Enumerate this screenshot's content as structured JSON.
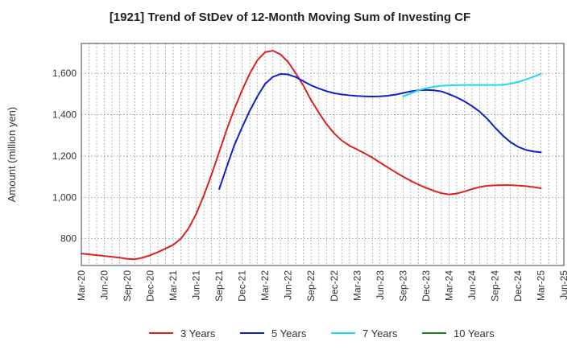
{
  "chart_data": {
    "type": "line",
    "title": "[1921]  Trend of StDev of 12-Month Moving Sum of Investing CF",
    "xlabel": "",
    "ylabel": "Amount (million yen)",
    "x_tick_labels": [
      "Mar-20",
      "Jun-20",
      "Sep-20",
      "Dec-20",
      "Mar-21",
      "Jun-21",
      "Sep-21",
      "Dec-21",
      "Mar-22",
      "Jun-22",
      "Sep-22",
      "Dec-22",
      "Mar-23",
      "Jun-23",
      "Sep-23",
      "Dec-23",
      "Mar-24",
      "Jun-24",
      "Sep-24",
      "Dec-24",
      "Mar-25",
      "Jun-25"
    ],
    "y_ticks": [
      800,
      1000,
      1200,
      1400,
      1600
    ],
    "y_tick_labels": [
      "800",
      "1,000",
      "1,200",
      "1,400",
      "1,600"
    ],
    "ylim": [
      670,
      1745
    ],
    "grid": true,
    "legend_position": "bottom",
    "series": [
      {
        "name": "3 Years",
        "color": "#e02020",
        "points": [
          [
            "Mar-20",
            728
          ],
          [
            "Apr-20",
            724
          ],
          [
            "May-20",
            720
          ],
          [
            "Jun-20",
            716
          ],
          [
            "Jul-20",
            712
          ],
          [
            "Aug-20",
            708
          ],
          [
            "Sep-20",
            702
          ],
          [
            "Oct-20",
            700
          ],
          [
            "Nov-20",
            708
          ],
          [
            "Dec-20",
            720
          ],
          [
            "Jan-21",
            735
          ],
          [
            "Feb-21",
            752
          ],
          [
            "Mar-21",
            770
          ],
          [
            "Apr-21",
            800
          ],
          [
            "May-21",
            850
          ],
          [
            "Jun-21",
            920
          ],
          [
            "Jul-21",
            1010
          ],
          [
            "Aug-21",
            1110
          ],
          [
            "Sep-21",
            1220
          ],
          [
            "Oct-21",
            1330
          ],
          [
            "Nov-21",
            1430
          ],
          [
            "Dec-21",
            1520
          ],
          [
            "Jan-22",
            1600
          ],
          [
            "Feb-22",
            1665
          ],
          [
            "Mar-22",
            1703
          ],
          [
            "Apr-22",
            1710
          ],
          [
            "May-22",
            1692
          ],
          [
            "Jun-22",
            1655
          ],
          [
            "Jul-22",
            1600
          ],
          [
            "Aug-22",
            1540
          ],
          [
            "Sep-22",
            1470
          ],
          [
            "Oct-22",
            1410
          ],
          [
            "Nov-22",
            1355
          ],
          [
            "Dec-22",
            1310
          ],
          [
            "Jan-23",
            1275
          ],
          [
            "Feb-23",
            1250
          ],
          [
            "Mar-23",
            1232
          ],
          [
            "Apr-23",
            1213
          ],
          [
            "May-23",
            1192
          ],
          [
            "Jun-23",
            1168
          ],
          [
            "Jul-23",
            1145
          ],
          [
            "Aug-23",
            1122
          ],
          [
            "Sep-23",
            1100
          ],
          [
            "Oct-23",
            1080
          ],
          [
            "Nov-23",
            1062
          ],
          [
            "Dec-23",
            1046
          ],
          [
            "Jan-24",
            1032
          ],
          [
            "Feb-24",
            1020
          ],
          [
            "Mar-24",
            1014
          ],
          [
            "Apr-24",
            1018
          ],
          [
            "May-24",
            1028
          ],
          [
            "Jun-24",
            1040
          ],
          [
            "Jul-24",
            1050
          ],
          [
            "Aug-24",
            1056
          ],
          [
            "Sep-24",
            1058
          ],
          [
            "Oct-24",
            1059
          ],
          [
            "Nov-24",
            1059
          ],
          [
            "Dec-24",
            1057
          ],
          [
            "Jan-25",
            1054
          ],
          [
            "Feb-25",
            1050
          ],
          [
            "Mar-25",
            1044
          ]
        ]
      },
      {
        "name": "5 Years",
        "color": "#1020c8",
        "points": [
          [
            "Sep-21",
            1040
          ],
          [
            "Oct-21",
            1150
          ],
          [
            "Nov-21",
            1255
          ],
          [
            "Dec-21",
            1340
          ],
          [
            "Jan-22",
            1420
          ],
          [
            "Feb-22",
            1490
          ],
          [
            "Mar-22",
            1550
          ],
          [
            "Apr-22",
            1583
          ],
          [
            "May-22",
            1597
          ],
          [
            "Jun-22",
            1595
          ],
          [
            "Jul-22",
            1582
          ],
          [
            "Aug-22",
            1562
          ],
          [
            "Sep-22",
            1542
          ],
          [
            "Oct-22",
            1527
          ],
          [
            "Nov-22",
            1514
          ],
          [
            "Dec-22",
            1504
          ],
          [
            "Jan-23",
            1498
          ],
          [
            "Feb-23",
            1494
          ],
          [
            "Mar-23",
            1491
          ],
          [
            "Apr-23",
            1489
          ],
          [
            "May-23",
            1488
          ],
          [
            "Jun-23",
            1489
          ],
          [
            "Jul-23",
            1492
          ],
          [
            "Aug-23",
            1497
          ],
          [
            "Sep-23",
            1505
          ],
          [
            "Oct-23",
            1513
          ],
          [
            "Nov-23",
            1518
          ],
          [
            "Dec-23",
            1520
          ],
          [
            "Jan-24",
            1518
          ],
          [
            "Feb-24",
            1513
          ],
          [
            "Mar-24",
            1500
          ],
          [
            "Apr-24",
            1484
          ],
          [
            "May-24",
            1465
          ],
          [
            "Jun-24",
            1442
          ],
          [
            "Jul-24",
            1415
          ],
          [
            "Aug-24",
            1380
          ],
          [
            "Sep-24",
            1338
          ],
          [
            "Oct-24",
            1300
          ],
          [
            "Nov-24",
            1268
          ],
          [
            "Dec-24",
            1245
          ],
          [
            "Jan-25",
            1230
          ],
          [
            "Feb-25",
            1222
          ],
          [
            "Mar-25",
            1218
          ]
        ]
      },
      {
        "name": "7 Years",
        "color": "#20d8e8",
        "points": [
          [
            "Sep-23",
            1488
          ],
          [
            "Oct-23",
            1503
          ],
          [
            "Nov-23",
            1518
          ],
          [
            "Dec-23",
            1528
          ],
          [
            "Jan-24",
            1535
          ],
          [
            "Feb-24",
            1540
          ],
          [
            "Mar-24",
            1542
          ],
          [
            "Apr-24",
            1543
          ],
          [
            "May-24",
            1544
          ],
          [
            "Jun-24",
            1544
          ],
          [
            "Jul-24",
            1544
          ],
          [
            "Aug-24",
            1544
          ],
          [
            "Sep-24",
            1544
          ],
          [
            "Oct-24",
            1545
          ],
          [
            "Nov-24",
            1550
          ],
          [
            "Dec-24",
            1558
          ],
          [
            "Jan-25",
            1570
          ],
          [
            "Feb-25",
            1583
          ],
          [
            "Mar-25",
            1598
          ]
        ]
      },
      {
        "name": "10 Years",
        "color": "#208020",
        "points": []
      }
    ]
  }
}
